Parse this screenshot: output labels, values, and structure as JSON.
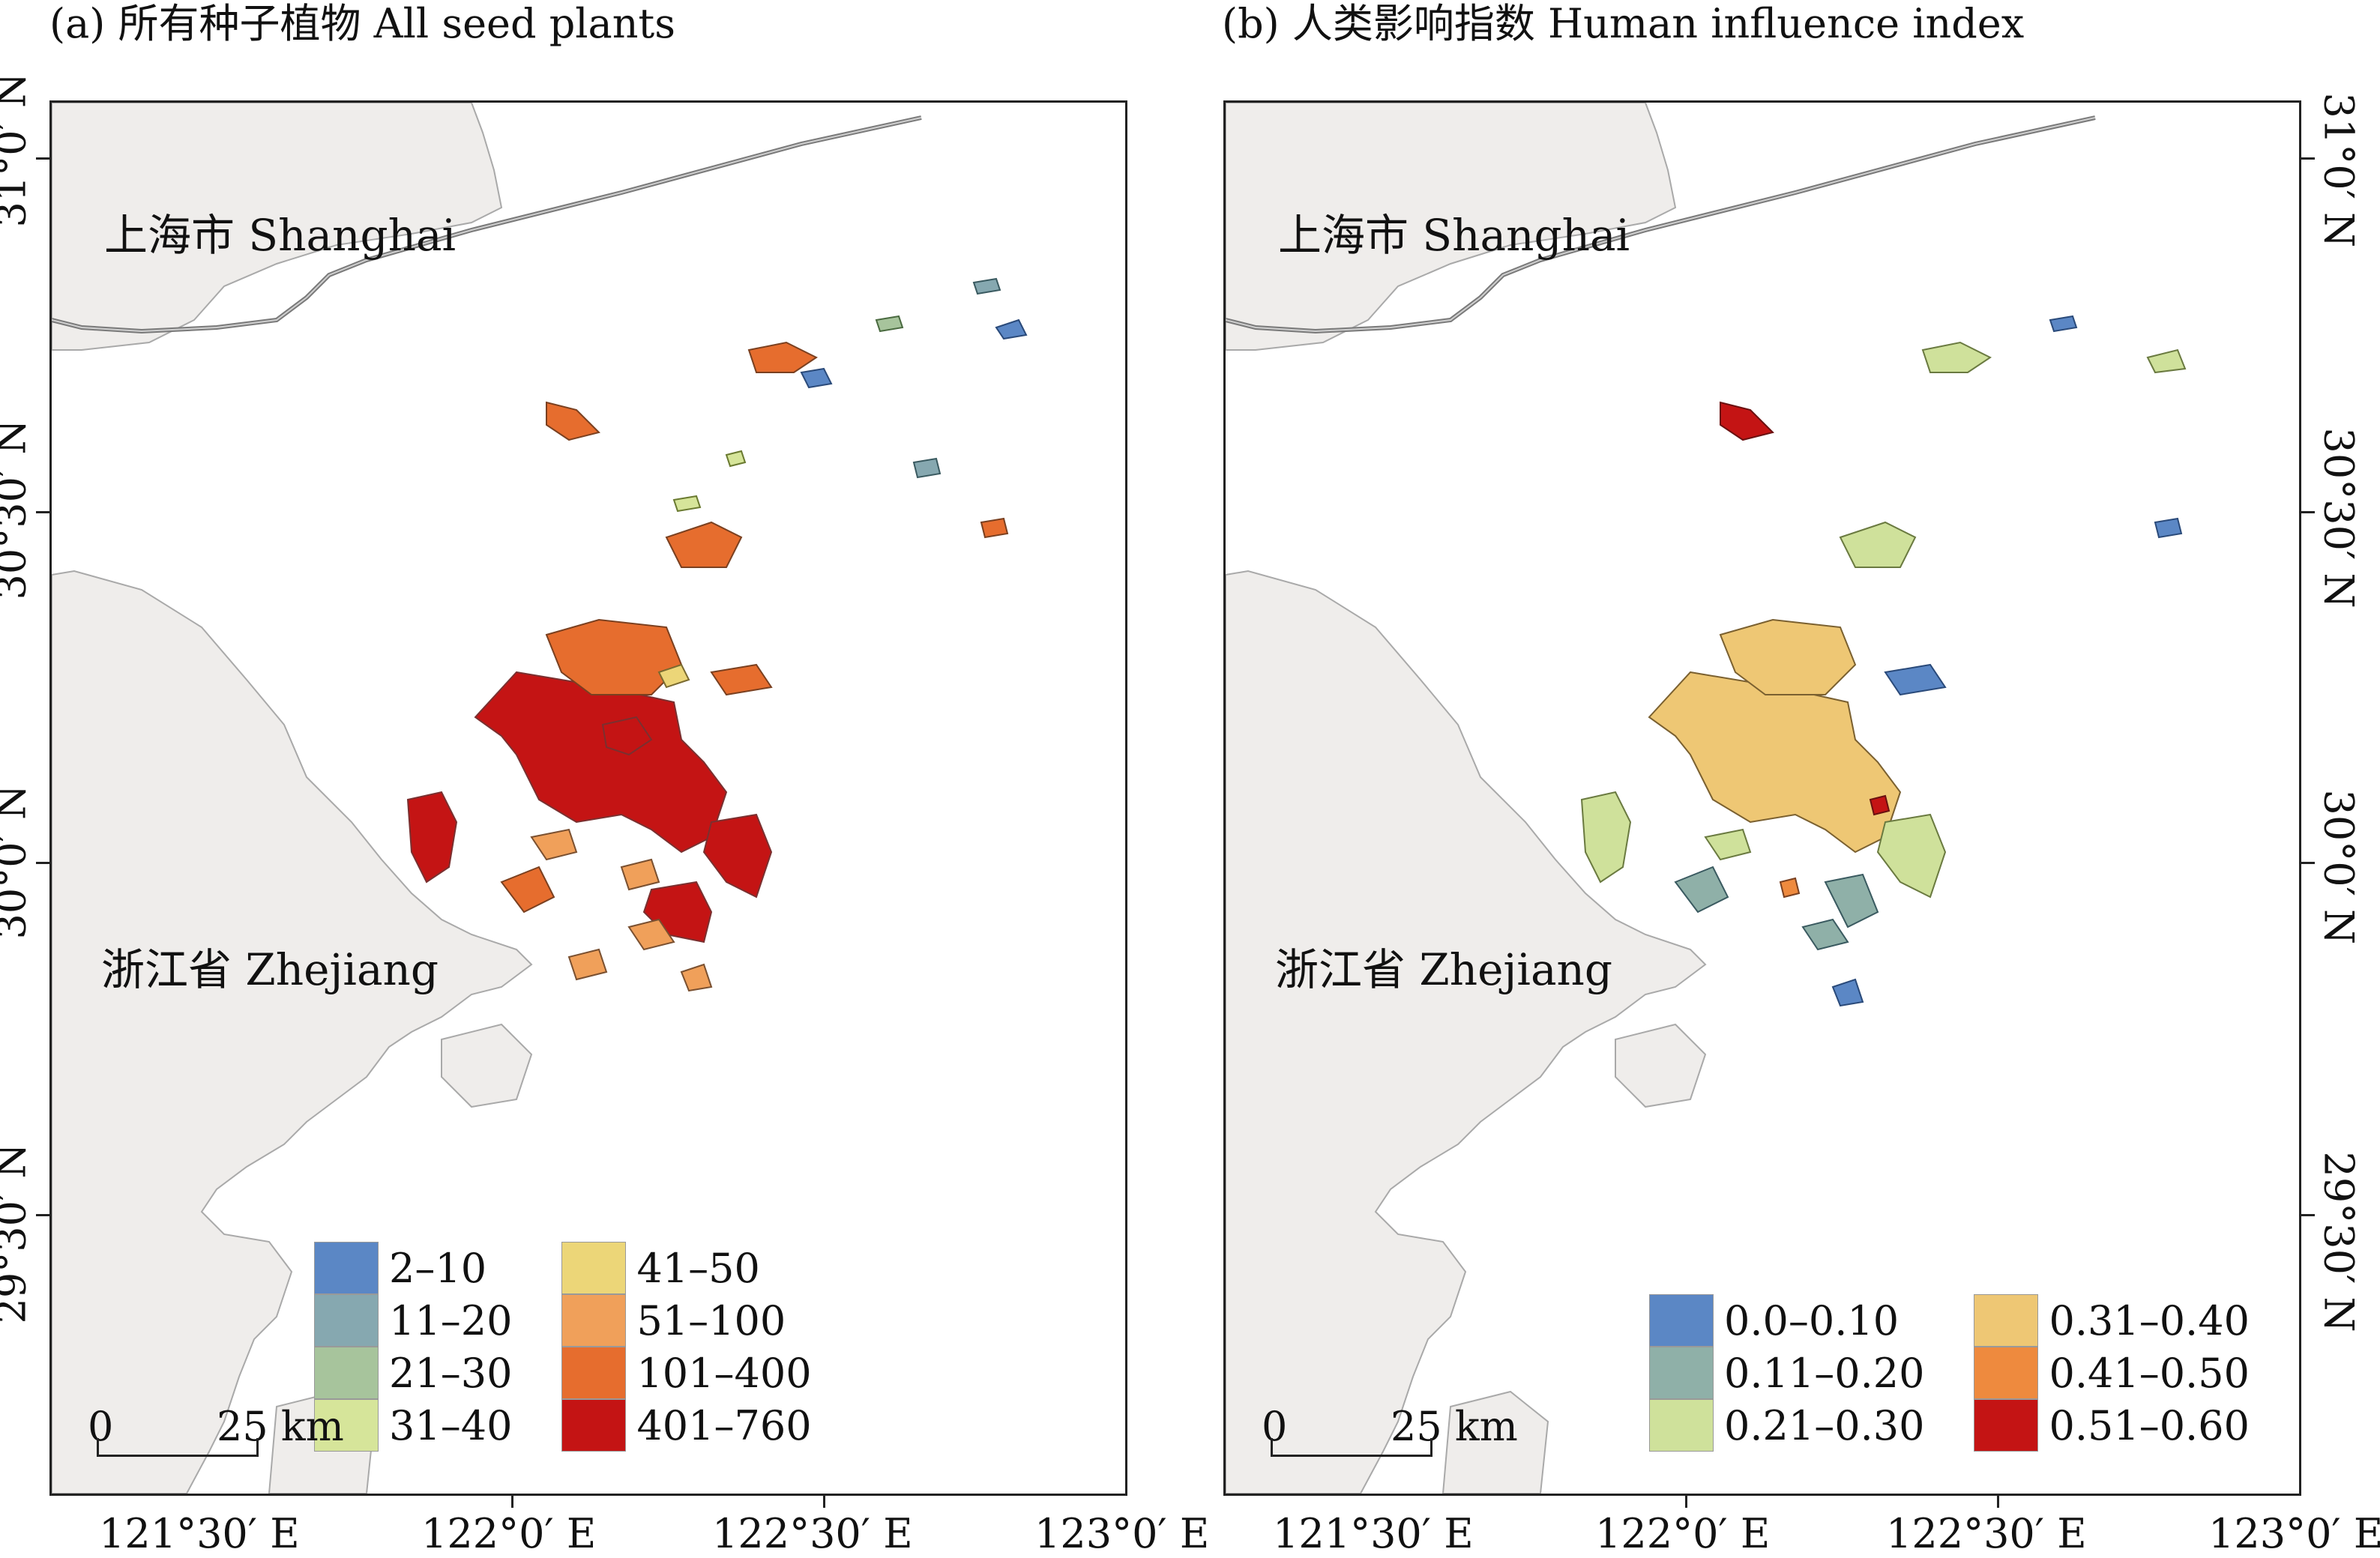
{
  "panels": [
    {
      "id": "a",
      "title": "(a) 所有种子植物 All seed plants",
      "labels": {
        "shanghai": "上海市 Shanghai",
        "zhejiang": "浙江省 Zhejiang"
      },
      "legend_title": "",
      "legend": [
        {
          "label": "2–10",
          "color": "#5b87c5"
        },
        {
          "label": "11–20",
          "color": "#86a8b0"
        },
        {
          "label": "21–30",
          "color": "#a7c49c"
        },
        {
          "label": "31–40",
          "color": "#d6e59a"
        },
        {
          "label": "41–50",
          "color": "#ecd678"
        },
        {
          "label": "51–100",
          "color": "#f0a05a"
        },
        {
          "label": "101–400",
          "color": "#e66d2e"
        },
        {
          "label": "401–760",
          "color": "#c41414"
        }
      ],
      "scalebar": {
        "start": "0",
        "end": "25 km"
      }
    },
    {
      "id": "b",
      "title": "(b) 人类影响指数 Human influence index",
      "labels": {
        "shanghai": "上海市 Shanghai",
        "zhejiang": "浙江省 Zhejiang"
      },
      "legend_title": "",
      "legend": [
        {
          "label": "0.0–0.10",
          "color": "#5b87c5"
        },
        {
          "label": "0.11–0.20",
          "color": "#8fb0a8"
        },
        {
          "label": "0.21–0.30",
          "color": "#cfe19b"
        },
        {
          "label": "0.31–0.40",
          "color": "#eec774"
        },
        {
          "label": "0.41–0.50",
          "color": "#ee8a3e"
        },
        {
          "label": "0.51–0.60",
          "color": "#c41414"
        }
      ],
      "scalebar": {
        "start": "0",
        "end": "25 km"
      }
    }
  ],
  "axes": {
    "longitudes": [
      "121°30′ E",
      "122°0′ E",
      "122°30′ E",
      "123°0′ E"
    ],
    "latitudes": [
      "31°0′ N",
      "30°30′ N",
      "30°0′ N",
      "29°30′ N"
    ]
  },
  "colors": {
    "land": "#efedeb",
    "land_border": "#a9a9a9",
    "water": "#ffffff",
    "boundary_line": "#7a7a7a"
  }
}
